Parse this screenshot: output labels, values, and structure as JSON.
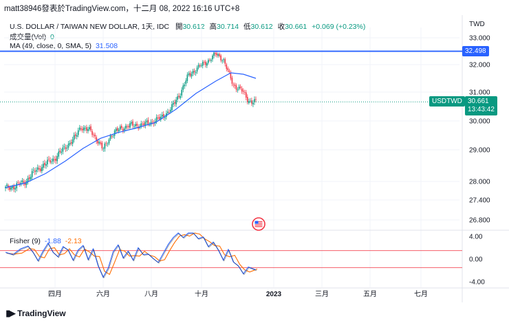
{
  "header": {
    "text": "matt38946發表於TradingView.com，十二月 08, 2022 16:16 UTC+8"
  },
  "legend": {
    "symbol": "U.S. DOLLAR / TAIWAN NEW DOLLAR, 1天, IDC",
    "o_label": "開",
    "o_value": "30.612",
    "h_label": "高",
    "h_value": "30.714",
    "l_label": "低",
    "l_value": "30.612",
    "c_label": "收",
    "c_value": "30.661",
    "change": "+0.069 (+0.23%)",
    "vol_label": "成交量(Vol)",
    "vol_value": "0",
    "ma_label": "MA (49, close, 0, SMA, 5)",
    "ma_value": "31.508",
    "fisher_label": "Fisher (9)",
    "fisher_value1": "-1.88",
    "fisher_value2": "-2.13"
  },
  "currency": "TWD",
  "price_tag": {
    "symbol": "USDTWD",
    "value": "30.661",
    "countdown": "13:43:42"
  },
  "hline": {
    "value": "32.498"
  },
  "footer": {
    "brand": "TradingView"
  },
  "colors": {
    "up": "#089981",
    "down": "#f23645",
    "ma": "#2962ff",
    "hline": "#2962ff",
    "fisher1": "#2962ff",
    "fisher2": "#ff6d00",
    "band": "#f23645"
  },
  "chart_data": [
    {
      "type": "candlestick",
      "title": "U.S. DOLLAR / TAIWAN NEW DOLLAR, 1天, IDC",
      "y_ticks": [
        33.0,
        32.0,
        31.0,
        30.0,
        29.0,
        28.0,
        27.4,
        26.8
      ],
      "y_tick_labels": [
        "33.000",
        "32.000",
        "31.000",
        "30.000",
        "29.000",
        "28.000",
        "27.400",
        "26.800"
      ],
      "x_tick_labels": [
        "四月",
        "六月",
        "八月",
        "十月",
        "2023",
        "三月",
        "五月",
        "七月"
      ],
      "ma_series": {
        "name": "MA (49, close, 0, SMA, 5)",
        "points": [
          [
            0,
            27.8
          ],
          [
            0.08,
            27.95
          ],
          [
            0.16,
            28.25
          ],
          [
            0.24,
            28.65
          ],
          [
            0.31,
            29.05
          ],
          [
            0.38,
            29.4
          ],
          [
            0.45,
            29.6
          ],
          [
            0.52,
            29.75
          ],
          [
            0.6,
            29.95
          ],
          [
            0.68,
            30.4
          ],
          [
            0.76,
            30.95
          ],
          [
            0.84,
            31.4
          ],
          [
            0.9,
            31.7
          ],
          [
            0.95,
            31.65
          ],
          [
            1.0,
            31.5
          ]
        ]
      },
      "close_path": [
        [
          0,
          27.78
        ],
        [
          0.04,
          27.85
        ],
        [
          0.08,
          28.0
        ],
        [
          0.12,
          28.35
        ],
        [
          0.16,
          28.55
        ],
        [
          0.2,
          28.75
        ],
        [
          0.24,
          29.1
        ],
        [
          0.28,
          29.45
        ],
        [
          0.3,
          29.8
        ],
        [
          0.34,
          29.65
        ],
        [
          0.37,
          29.3
        ],
        [
          0.39,
          29.0
        ],
        [
          0.42,
          29.5
        ],
        [
          0.46,
          29.75
        ],
        [
          0.5,
          29.85
        ],
        [
          0.54,
          29.85
        ],
        [
          0.58,
          29.95
        ],
        [
          0.62,
          30.1
        ],
        [
          0.66,
          30.4
        ],
        [
          0.7,
          31.0
        ],
        [
          0.73,
          31.6
        ],
        [
          0.77,
          31.9
        ],
        [
          0.81,
          32.15
        ],
        [
          0.84,
          32.4
        ],
        [
          0.87,
          32.2
        ],
        [
          0.89,
          31.7
        ],
        [
          0.91,
          31.25
        ],
        [
          0.94,
          31.1
        ],
        [
          0.97,
          30.7
        ],
        [
          1.0,
          30.66
        ]
      ],
      "last_close": 30.661,
      "horizontal_line": 32.498
    },
    {
      "type": "line",
      "title": "Fisher (9)",
      "y_ticks": [
        4.0,
        0.0,
        -4.0
      ],
      "y_tick_labels": [
        "4.00",
        "0.00",
        "-4.00"
      ],
      "bands": [
        1.5,
        -1.5
      ],
      "series": [
        {
          "name": "Fisher",
          "last": -1.88
        },
        {
          "name": "Trigger",
          "last": -2.13
        }
      ],
      "fisher_path": [
        [
          0,
          1.2
        ],
        [
          0.03,
          0.8
        ],
        [
          0.06,
          1.8
        ],
        [
          0.09,
          2.3
        ],
        [
          0.11,
          1.2
        ],
        [
          0.13,
          -0.3
        ],
        [
          0.15,
          1.4
        ],
        [
          0.17,
          2.8
        ],
        [
          0.19,
          1.2
        ],
        [
          0.21,
          0.4
        ],
        [
          0.23,
          2.2
        ],
        [
          0.25,
          1.6
        ],
        [
          0.27,
          -0.2
        ],
        [
          0.29,
          1.6
        ],
        [
          0.31,
          2.4
        ],
        [
          0.33,
          -0.1
        ],
        [
          0.35,
          1.8
        ],
        [
          0.37,
          -1.2
        ],
        [
          0.39,
          -3.2
        ],
        [
          0.41,
          -1.6
        ],
        [
          0.43,
          1.3
        ],
        [
          0.45,
          2.5
        ],
        [
          0.47,
          0.2
        ],
        [
          0.49,
          1.4
        ],
        [
          0.51,
          -0.2
        ],
        [
          0.53,
          2.0
        ],
        [
          0.55,
          0.8
        ],
        [
          0.57,
          0.9
        ],
        [
          0.59,
          0.1
        ],
        [
          0.61,
          -0.6
        ],
        [
          0.63,
          1.0
        ],
        [
          0.65,
          2.6
        ],
        [
          0.67,
          3.8
        ],
        [
          0.69,
          4.9
        ],
        [
          0.71,
          3.8
        ],
        [
          0.73,
          4.8
        ],
        [
          0.75,
          5.2
        ],
        [
          0.77,
          3.6
        ],
        [
          0.79,
          3.9
        ],
        [
          0.81,
          2.2
        ],
        [
          0.83,
          3.0
        ],
        [
          0.85,
          1.6
        ],
        [
          0.87,
          -0.2
        ],
        [
          0.89,
          1.7
        ],
        [
          0.91,
          -0.5
        ],
        [
          0.93,
          -1.2
        ],
        [
          0.95,
          -2.6
        ],
        [
          0.97,
          -1.4
        ],
        [
          1.0,
          -1.9
        ]
      ]
    }
  ]
}
